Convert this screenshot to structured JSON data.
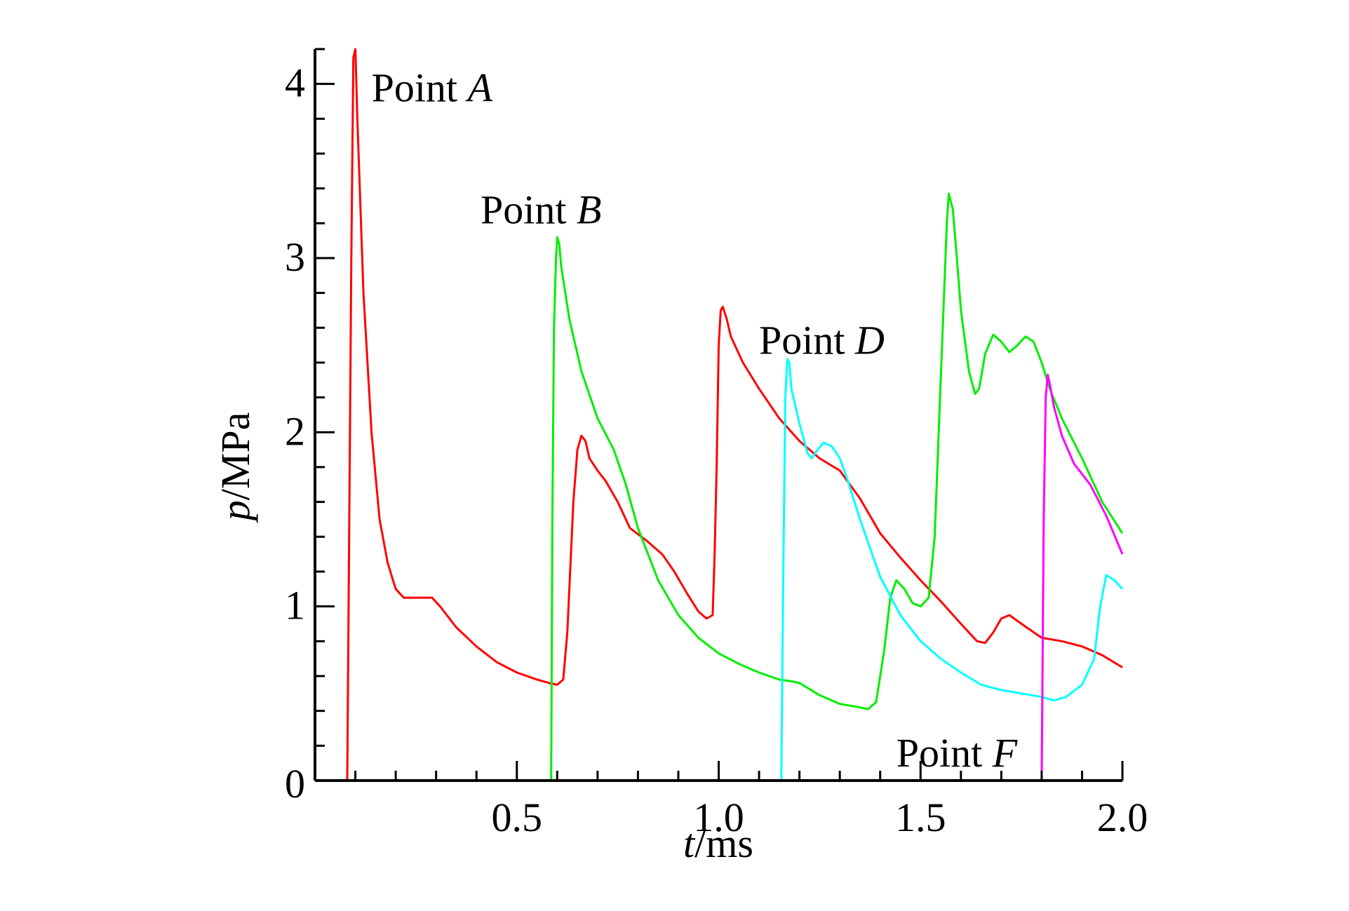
{
  "chart_data": {
    "type": "line",
    "title": "",
    "xlabel": {
      "var": "t",
      "unit": "/ms"
    },
    "ylabel": {
      "var": "p",
      "unit": "/MPa"
    },
    "xlim": [
      0,
      2.0
    ],
    "ylim": [
      0,
      4.2
    ],
    "xticks": [
      {
        "value": 0.5,
        "label": "0.5"
      },
      {
        "value": 1.0,
        "label": "1.0"
      },
      {
        "value": 1.5,
        "label": "1.5"
      },
      {
        "value": 2.0,
        "label": "2.0"
      }
    ],
    "yticks": [
      {
        "value": 0,
        "label": "0"
      },
      {
        "value": 1,
        "label": "1"
      },
      {
        "value": 2,
        "label": "2"
      },
      {
        "value": 3,
        "label": "3"
      },
      {
        "value": 4,
        "label": "4"
      }
    ],
    "grid": false,
    "annotations": [
      {
        "prefix": "Point ",
        "letter": "A",
        "x": 0.14,
        "y": 3.9
      },
      {
        "prefix": "Point ",
        "letter": "B",
        "x": 0.41,
        "y": 3.2
      },
      {
        "prefix": "Point ",
        "letter": "D",
        "x": 1.1,
        "y": 2.45
      },
      {
        "prefix": "Point ",
        "letter": "F",
        "x": 1.44,
        "y": 0.08
      }
    ],
    "series": [
      {
        "color": "#ff0000",
        "points": [
          [
            0.08,
            0
          ],
          [
            0.085,
            1.5
          ],
          [
            0.09,
            3.0
          ],
          [
            0.095,
            4.15
          ],
          [
            0.1,
            4.2
          ],
          [
            0.105,
            3.8
          ],
          [
            0.12,
            2.8
          ],
          [
            0.14,
            2.0
          ],
          [
            0.16,
            1.5
          ],
          [
            0.18,
            1.25
          ],
          [
            0.2,
            1.1
          ],
          [
            0.22,
            1.05
          ],
          [
            0.25,
            1.05
          ],
          [
            0.29,
            1.05
          ],
          [
            0.31,
            1.0
          ],
          [
            0.35,
            0.88
          ],
          [
            0.4,
            0.77
          ],
          [
            0.45,
            0.68
          ],
          [
            0.5,
            0.62
          ],
          [
            0.55,
            0.58
          ],
          [
            0.58,
            0.56
          ],
          [
            0.6,
            0.55
          ],
          [
            0.615,
            0.58
          ],
          [
            0.625,
            0.85
          ],
          [
            0.63,
            1.1
          ],
          [
            0.64,
            1.6
          ],
          [
            0.65,
            1.9
          ],
          [
            0.66,
            1.98
          ],
          [
            0.67,
            1.95
          ],
          [
            0.68,
            1.85
          ],
          [
            0.7,
            1.78
          ],
          [
            0.72,
            1.72
          ],
          [
            0.75,
            1.6
          ],
          [
            0.78,
            1.45
          ],
          [
            0.82,
            1.38
          ],
          [
            0.86,
            1.3
          ],
          [
            0.89,
            1.2
          ],
          [
            0.92,
            1.08
          ],
          [
            0.95,
            0.97
          ],
          [
            0.97,
            0.93
          ],
          [
            0.985,
            0.95
          ],
          [
            0.99,
            1.3
          ],
          [
            0.995,
            1.8
          ],
          [
            1.0,
            2.5
          ],
          [
            1.005,
            2.7
          ],
          [
            1.01,
            2.72
          ],
          [
            1.02,
            2.65
          ],
          [
            1.03,
            2.55
          ],
          [
            1.06,
            2.4
          ],
          [
            1.1,
            2.25
          ],
          [
            1.15,
            2.08
          ],
          [
            1.2,
            1.95
          ],
          [
            1.25,
            1.85
          ],
          [
            1.3,
            1.78
          ],
          [
            1.35,
            1.62
          ],
          [
            1.4,
            1.42
          ],
          [
            1.45,
            1.28
          ],
          [
            1.5,
            1.15
          ],
          [
            1.55,
            1.03
          ],
          [
            1.6,
            0.9
          ],
          [
            1.64,
            0.8
          ],
          [
            1.66,
            0.79
          ],
          [
            1.68,
            0.85
          ],
          [
            1.7,
            0.93
          ],
          [
            1.72,
            0.95
          ],
          [
            1.75,
            0.9
          ],
          [
            1.8,
            0.82
          ],
          [
            1.85,
            0.8
          ],
          [
            1.9,
            0.77
          ],
          [
            1.95,
            0.72
          ],
          [
            2.0,
            0.65
          ]
        ]
      },
      {
        "color": "#00ee00",
        "points": [
          [
            0.585,
            0
          ],
          [
            0.588,
            1.5
          ],
          [
            0.592,
            2.6
          ],
          [
            0.597,
            3.0
          ],
          [
            0.6,
            3.12
          ],
          [
            0.605,
            3.08
          ],
          [
            0.61,
            2.95
          ],
          [
            0.63,
            2.65
          ],
          [
            0.66,
            2.35
          ],
          [
            0.7,
            2.08
          ],
          [
            0.74,
            1.9
          ],
          [
            0.77,
            1.7
          ],
          [
            0.8,
            1.45
          ],
          [
            0.85,
            1.15
          ],
          [
            0.9,
            0.95
          ],
          [
            0.95,
            0.82
          ],
          [
            1.0,
            0.73
          ],
          [
            1.05,
            0.67
          ],
          [
            1.1,
            0.62
          ],
          [
            1.15,
            0.58
          ],
          [
            1.18,
            0.57
          ],
          [
            1.2,
            0.56
          ],
          [
            1.25,
            0.49
          ],
          [
            1.3,
            0.44
          ],
          [
            1.35,
            0.42
          ],
          [
            1.37,
            0.41
          ],
          [
            1.39,
            0.45
          ],
          [
            1.41,
            0.75
          ],
          [
            1.425,
            1.05
          ],
          [
            1.44,
            1.15
          ],
          [
            1.46,
            1.1
          ],
          [
            1.48,
            1.02
          ],
          [
            1.5,
            1.0
          ],
          [
            1.52,
            1.05
          ],
          [
            1.535,
            1.4
          ],
          [
            1.55,
            2.3
          ],
          [
            1.565,
            3.2
          ],
          [
            1.57,
            3.37
          ],
          [
            1.58,
            3.28
          ],
          [
            1.59,
            3.0
          ],
          [
            1.6,
            2.7
          ],
          [
            1.62,
            2.35
          ],
          [
            1.635,
            2.22
          ],
          [
            1.645,
            2.25
          ],
          [
            1.66,
            2.45
          ],
          [
            1.68,
            2.56
          ],
          [
            1.7,
            2.52
          ],
          [
            1.72,
            2.46
          ],
          [
            1.74,
            2.5
          ],
          [
            1.76,
            2.55
          ],
          [
            1.78,
            2.52
          ],
          [
            1.8,
            2.4
          ],
          [
            1.82,
            2.25
          ],
          [
            1.85,
            2.08
          ],
          [
            1.9,
            1.85
          ],
          [
            1.95,
            1.6
          ],
          [
            2.0,
            1.42
          ]
        ]
      },
      {
        "color": "#00ffff",
        "points": [
          [
            1.155,
            0
          ],
          [
            1.16,
            1.2
          ],
          [
            1.165,
            2.2
          ],
          [
            1.17,
            2.42
          ],
          [
            1.175,
            2.4
          ],
          [
            1.18,
            2.25
          ],
          [
            1.2,
            2.05
          ],
          [
            1.22,
            1.88
          ],
          [
            1.23,
            1.85
          ],
          [
            1.245,
            1.9
          ],
          [
            1.26,
            1.94
          ],
          [
            1.28,
            1.92
          ],
          [
            1.3,
            1.85
          ],
          [
            1.32,
            1.72
          ],
          [
            1.35,
            1.5
          ],
          [
            1.4,
            1.17
          ],
          [
            1.45,
            0.95
          ],
          [
            1.5,
            0.8
          ],
          [
            1.55,
            0.7
          ],
          [
            1.6,
            0.62
          ],
          [
            1.65,
            0.55
          ],
          [
            1.7,
            0.52
          ],
          [
            1.75,
            0.5
          ],
          [
            1.8,
            0.48
          ],
          [
            1.83,
            0.46
          ],
          [
            1.86,
            0.48
          ],
          [
            1.9,
            0.55
          ],
          [
            1.93,
            0.7
          ],
          [
            1.945,
            1.0
          ],
          [
            1.96,
            1.18
          ],
          [
            1.98,
            1.15
          ],
          [
            2.0,
            1.1
          ]
        ]
      },
      {
        "color": "#ff00ff",
        "points": [
          [
            1.8,
            0
          ],
          [
            1.805,
            1.5
          ],
          [
            1.81,
            2.2
          ],
          [
            1.815,
            2.33
          ],
          [
            1.82,
            2.28
          ],
          [
            1.83,
            2.15
          ],
          [
            1.85,
            1.98
          ],
          [
            1.88,
            1.82
          ],
          [
            1.92,
            1.7
          ],
          [
            1.96,
            1.52
          ],
          [
            2.0,
            1.3
          ]
        ]
      }
    ]
  }
}
